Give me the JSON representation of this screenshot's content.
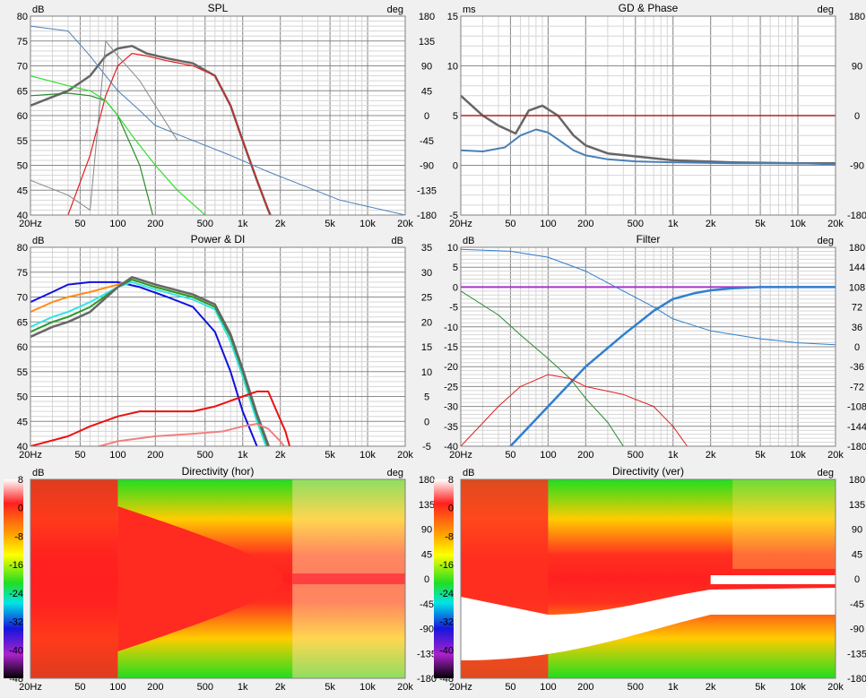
{
  "colors": {
    "background": "#f0f0f0",
    "plot_bg": "#ffffff",
    "grid_major": "#8a8a8a",
    "grid_minor": "#d6d6d6",
    "spl_gray": "#666666",
    "spl_red": "#e02020",
    "spl_green": "#2a8a2a",
    "spl_lightgreen": "#33dd33",
    "spl_blue": "#4a7fb8",
    "gd_blue": "#4a7fb8",
    "phase_red": "#b82020",
    "filter_purple": "#aa33cc",
    "filter_blue": "#2f7fd0",
    "power_blue": "#1010e0",
    "power_orange": "#ff8c1a",
    "power_cyan": "#33e5e5",
    "power_green": "#2a9a2a",
    "power_gray": "#666666",
    "di_red": "#ee1010",
    "di_pink": "#f08080"
  },
  "x_ticks": [
    "20Hz",
    "50",
    "100",
    "200",
    "500",
    "1k",
    "2k",
    "5k",
    "10k",
    "20k"
  ],
  "x_tick_values": [
    20,
    50,
    100,
    200,
    500,
    1000,
    2000,
    5000,
    10000,
    20000
  ],
  "chart_data": [
    {
      "type": "line",
      "title": "SPL",
      "left_unit": "dB",
      "right_unit": "deg",
      "x_scale": "log",
      "xlim": [
        20,
        20000
      ],
      "ylim": [
        40,
        80
      ],
      "y_ticks": [
        "80",
        "75",
        "70",
        "65",
        "60",
        "55",
        "50",
        "45",
        "40"
      ],
      "y2lim": [
        -180,
        180
      ],
      "y2_ticks": [
        "180",
        "135",
        "90",
        "45",
        "0",
        "-45",
        "-90",
        "-135",
        "-180"
      ],
      "series": [
        {
          "color": "#666666",
          "width": 2.5,
          "x": [
            20,
            40,
            60,
            80,
            100,
            130,
            170,
            250,
            400,
            600,
            800,
            1000,
            1300,
            1600,
            1800
          ],
          "y": [
            62,
            65,
            68,
            72,
            73.5,
            74,
            72.5,
            71.5,
            70.5,
            68,
            62,
            55,
            47,
            41,
            38
          ]
        },
        {
          "color": "#e02020",
          "width": 1.2,
          "x": [
            20,
            40,
            60,
            80,
            100,
            130,
            170,
            250,
            400,
            600,
            800,
            1000,
            1300,
            1600,
            1800
          ],
          "y": [
            30,
            40,
            52,
            64,
            70,
            72.5,
            72,
            71,
            70,
            68,
            62,
            55,
            47,
            41,
            38
          ]
        },
        {
          "color": "#2a8a2a",
          "width": 1.2,
          "x": [
            20,
            40,
            60,
            80,
            100,
            150,
            200
          ],
          "y": [
            64,
            64.5,
            64,
            63,
            60,
            50,
            38
          ]
        },
        {
          "color": "#33dd33",
          "width": 1.2,
          "x": [
            20,
            40,
            60,
            80,
            100,
            130,
            200,
            300,
            500
          ],
          "y": [
            68,
            66,
            65,
            63,
            60,
            56,
            50,
            45,
            40
          ]
        },
        {
          "color": "#4a7fb8",
          "width": 1,
          "x": [
            20,
            40,
            60,
            80,
            100,
            150,
            200,
            400,
            800,
            1500,
            3000,
            6000,
            20000
          ],
          "y": [
            78,
            77,
            72,
            68,
            65,
            61,
            58,
            55,
            52,
            49,
            46,
            43,
            40
          ]
        },
        {
          "color": "#888888",
          "width": 1,
          "x": [
            20,
            40,
            60,
            80,
            100,
            150,
            200,
            300
          ],
          "y": [
            47,
            44,
            41,
            75,
            72,
            67,
            62,
            55
          ]
        }
      ]
    },
    {
      "type": "line",
      "title": "GD & Phase",
      "left_unit": "ms",
      "right_unit": "deg",
      "x_scale": "log",
      "xlim": [
        20,
        20000
      ],
      "ylim": [
        -5,
        15
      ],
      "y_ticks": [
        "15",
        "10",
        "5",
        "0",
        "-5"
      ],
      "y2lim": [
        -180,
        180
      ],
      "y2_ticks": [
        "180",
        "90",
        "0",
        "-90",
        "-180"
      ],
      "series": [
        {
          "color": "#666666",
          "width": 2.5,
          "x": [
            20,
            30,
            40,
            55,
            70,
            90,
            120,
            160,
            200,
            300,
            500,
            1000,
            3000,
            10000,
            20000
          ],
          "y": [
            7,
            5,
            4,
            3.2,
            5.5,
            6,
            5,
            3,
            2,
            1.2,
            0.9,
            0.5,
            0.3,
            0.2,
            0.2
          ]
        },
        {
          "color": "#4a7fb8",
          "width": 2,
          "x": [
            20,
            30,
            45,
            60,
            80,
            100,
            130,
            160,
            200,
            300,
            500,
            1000,
            3000,
            10000,
            20000
          ],
          "y": [
            1.5,
            1.4,
            1.8,
            3,
            3.6,
            3.3,
            2.3,
            1.5,
            1,
            0.6,
            0.4,
            0.3,
            0.2,
            0.2,
            0.1
          ]
        },
        {
          "color": "#b82020",
          "width": 1.5,
          "x": [
            20,
            20000
          ],
          "y": [
            5,
            5
          ]
        }
      ]
    },
    {
      "type": "line",
      "title": "Power & DI",
      "left_unit": "dB",
      "right_unit": "dB",
      "x_scale": "log",
      "xlim": [
        20,
        20000
      ],
      "ylim": [
        40,
        80
      ],
      "y_ticks": [
        "80",
        "75",
        "70",
        "65",
        "60",
        "55",
        "50",
        "45",
        "40"
      ],
      "y2lim": [
        -5,
        35
      ],
      "y2_ticks": [
        "35",
        "30",
        "25",
        "20",
        "15",
        "10",
        "5",
        "0",
        "-5"
      ],
      "series": [
        {
          "color": "#1010e0",
          "width": 2,
          "x": [
            20,
            30,
            40,
            60,
            100,
            150,
            250,
            400,
            600,
            800,
            1000,
            1300,
            1600
          ],
          "y": [
            69,
            71,
            72.5,
            73,
            73,
            72,
            70,
            68,
            63,
            55,
            47,
            40,
            35
          ]
        },
        {
          "color": "#ff8c1a",
          "width": 2,
          "x": [
            20,
            30,
            40,
            60,
            100,
            130,
            200,
            400,
            600,
            800,
            1000,
            1300,
            1700
          ],
          "y": [
            67,
            69,
            70,
            71,
            72.5,
            73.5,
            72,
            70,
            68,
            62,
            55,
            46,
            38
          ]
        },
        {
          "color": "#33e5e5",
          "width": 2,
          "x": [
            20,
            30,
            40,
            60,
            100,
            130,
            200,
            400,
            600,
            800,
            1000,
            1300,
            1700
          ],
          "y": [
            64,
            66,
            67,
            69,
            72,
            73,
            71.5,
            69.5,
            67.5,
            61,
            54,
            45,
            37
          ]
        },
        {
          "color": "#2a9a2a",
          "width": 2,
          "x": [
            20,
            30,
            40,
            60,
            100,
            130,
            200,
            400,
            600,
            800,
            1000,
            1300,
            1700
          ],
          "y": [
            63,
            65,
            66,
            68,
            72,
            73.5,
            72,
            70,
            68,
            62,
            55,
            46,
            38
          ]
        },
        {
          "color": "#666666",
          "width": 2.5,
          "x": [
            20,
            30,
            40,
            60,
            100,
            130,
            200,
            400,
            600,
            800,
            1000,
            1300,
            1700
          ],
          "y": [
            62,
            64,
            65,
            67,
            72,
            74,
            72.5,
            70.5,
            68.5,
            62.5,
            55.5,
            46.5,
            38.5
          ]
        },
        {
          "color": "#ee1010",
          "width": 2,
          "y_axis": "right",
          "x": [
            20,
            40,
            60,
            100,
            150,
            200,
            400,
            600,
            1000,
            1300,
            1600,
            1800,
            2200,
            2500,
            3000,
            3500
          ],
          "y": [
            -5,
            -3,
            -1,
            1,
            2,
            2,
            2,
            3,
            5,
            6,
            6,
            3,
            -2,
            -7,
            -10,
            -5
          ]
        },
        {
          "color": "#f08080",
          "width": 2,
          "y_axis": "right",
          "x": [
            20,
            40,
            60,
            100,
            200,
            400,
            700,
            1000,
            1300,
            1600,
            2000,
            2300
          ],
          "y": [
            -6,
            -6,
            -5.5,
            -4,
            -3,
            -2.5,
            -2,
            -1,
            -0.5,
            -1.5,
            -4,
            -6
          ]
        }
      ]
    },
    {
      "type": "line",
      "title": "Filter",
      "left_unit": "dB",
      "right_unit": "deg",
      "x_scale": "log",
      "xlim": [
        20,
        20000
      ],
      "ylim": [
        -40,
        10
      ],
      "y_ticks": [
        "10",
        "5",
        "0",
        "-5",
        "-10",
        "-15",
        "-20",
        "-25",
        "-30",
        "-35",
        "-40"
      ],
      "y2lim": [
        -180,
        180
      ],
      "y2_ticks": [
        "180",
        "144",
        "108",
        "72",
        "36",
        "0",
        "-36",
        "-72",
        "-108",
        "-144",
        "-180"
      ],
      "series": [
        {
          "color": "#aa33cc",
          "width": 2,
          "x": [
            20,
            20000
          ],
          "y": [
            0,
            0
          ]
        },
        {
          "color": "#2f7fd0",
          "width": 1,
          "x": [
            20,
            50,
            100,
            200,
            400,
            700,
            1000,
            2000,
            5000,
            10000,
            20000
          ],
          "y": [
            9.5,
            9,
            7.5,
            4,
            -1,
            -5,
            -8,
            -11,
            -13,
            -14,
            -14.5
          ]
        },
        {
          "color": "#2f7fd0",
          "width": 2.5,
          "x": [
            50,
            100,
            200,
            400,
            700,
            1000,
            1500,
            2000,
            3000,
            5000,
            10000,
            20000
          ],
          "y": [
            -40,
            -30,
            -20,
            -12,
            -6,
            -3,
            -1.5,
            -0.8,
            -0.3,
            0,
            0,
            0
          ]
        },
        {
          "color": "#2a8a2a",
          "width": 1,
          "x": [
            20,
            40,
            60,
            100,
            150,
            200,
            300,
            400
          ],
          "y": [
            -1,
            -7,
            -12,
            -18,
            -23,
            -28,
            -34,
            -40
          ]
        },
        {
          "color": "#e02020",
          "width": 1,
          "x": [
            20,
            40,
            60,
            100,
            150,
            200,
            400,
            700,
            1000,
            1300
          ],
          "y": [
            -40,
            -30,
            -25,
            -22,
            -23,
            -25,
            -27,
            -30,
            -35,
            -40
          ]
        }
      ]
    },
    {
      "type": "heatmap",
      "title": "Directivity (hor)",
      "left_unit": "dB",
      "right_unit": "deg",
      "x_scale": "log",
      "xlim": [
        20,
        20000
      ],
      "ylim": [
        -180,
        180
      ],
      "y2_ticks": [
        "180",
        "135",
        "90",
        "45",
        "0",
        "-45",
        "-90",
        "-135",
        "-180"
      ],
      "colorbar_ticks": [
        "8",
        "0",
        "-8",
        "-16",
        "-24",
        "-32",
        "-40",
        "-48"
      ],
      "zlim": [
        -48,
        8
      ]
    },
    {
      "type": "heatmap",
      "title": "Directivity (ver)",
      "left_unit": "dB",
      "right_unit": "deg",
      "x_scale": "log",
      "xlim": [
        20,
        20000
      ],
      "ylim": [
        -180,
        180
      ],
      "y2_ticks": [
        "180",
        "135",
        "90",
        "45",
        "0",
        "-45",
        "-90",
        "-135",
        "-180"
      ],
      "colorbar_ticks": [
        "8",
        "0",
        "-8",
        "-16",
        "-24",
        "-32",
        "-40",
        "-48"
      ],
      "zlim": [
        -48,
        8
      ]
    }
  ]
}
